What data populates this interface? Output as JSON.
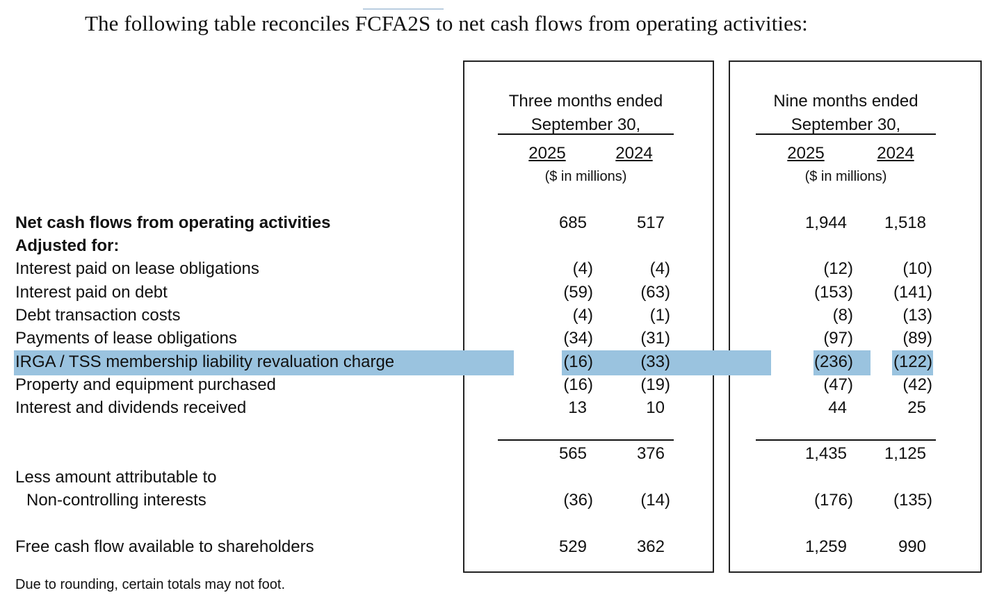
{
  "title": "The following table reconciles FCFA2S to net cash flows from operating activities:",
  "colors": {
    "highlight": "#9ac3df"
  },
  "periods": [
    {
      "title_line1": "Three months ended",
      "title_line2": "September 30,",
      "year1": "2025",
      "year2": "2024",
      "units": "($ in millions)"
    },
    {
      "title_line1": "Nine months ended",
      "title_line2": "September 30,",
      "year1": "2025",
      "year2": "2024",
      "units": "($ in millions)"
    }
  ],
  "rows": [
    {
      "label": "Net cash flows from operating activities",
      "bold": true,
      "values": [
        "685",
        "517",
        "1,944",
        "1,518"
      ]
    },
    {
      "label": "Adjusted for:",
      "bold": true,
      "values": [
        "",
        "",
        "",
        ""
      ]
    },
    {
      "label": "Interest paid on lease obligations",
      "values": [
        "(4)",
        "(4)",
        "(12)",
        "(10)"
      ]
    },
    {
      "label": "Interest paid on debt",
      "values": [
        "(59)",
        "(63)",
        "(153)",
        "(141)"
      ]
    },
    {
      "label": "Debt transaction costs",
      "values": [
        "(4)",
        "(1)",
        "(8)",
        "(13)"
      ]
    },
    {
      "label": "Payments of lease obligations",
      "values": [
        "(34)",
        "(31)",
        "(97)",
        "(89)"
      ]
    },
    {
      "label": "IRGA / TSS membership liability revaluation charge",
      "highlighted": true,
      "values": [
        "(16)",
        "(33)",
        "(236)",
        "(122)"
      ]
    },
    {
      "label": "Property and equipment purchased",
      "values": [
        "(16)",
        "(19)",
        "(47)",
        "(42)"
      ]
    },
    {
      "label": "Interest and dividends received",
      "values": [
        "13",
        "10",
        "44",
        "25"
      ]
    },
    {
      "label": "",
      "values": [
        "565",
        "376",
        "1,435",
        "1,125"
      ]
    },
    {
      "label": "Less amount attributable to",
      "values": [
        "",
        "",
        "",
        ""
      ]
    },
    {
      "label": "Non-controlling interests",
      "values": [
        "(36)",
        "(14)",
        "(176)",
        "(135)"
      ]
    },
    {
      "label": "Free cash flow available to shareholders",
      "values": [
        "529",
        "362",
        "1,259",
        "990"
      ]
    }
  ],
  "footnote": "Due to rounding, certain totals may not foot."
}
